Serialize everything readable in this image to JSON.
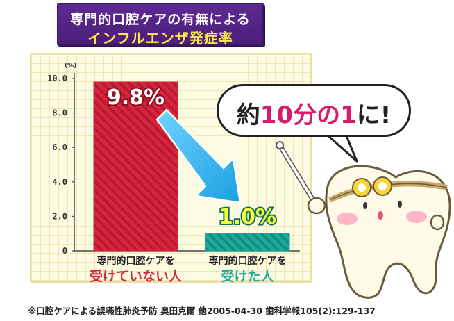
{
  "header": {
    "title_line1": "専門的口腔ケアの有無による",
    "title_line2": "インフルエンザ発症率"
  },
  "chart_data": {
    "type": "bar",
    "unit": "(%)",
    "categories": [
      {
        "line1": "専門的口腔ケアを",
        "line2": "受けていない人"
      },
      {
        "line1": "専門的口腔ケアを",
        "line2": "受けた人"
      }
    ],
    "values": [
      9.8,
      1.0
    ],
    "value_labels": [
      "9.8%",
      "1.0%"
    ],
    "ylim": [
      0,
      10
    ],
    "yticks": [
      "0",
      "2.0",
      "4.0",
      "6.0",
      "8.0",
      "10.0"
    ],
    "bar_colors": [
      "#d7253e",
      "#1aa99a"
    ],
    "label_colors": [
      "#d7253e",
      "#1aa99a"
    ],
    "arrow_color": "#33b6ee",
    "grid": true
  },
  "callout": {
    "prefix": "約",
    "highlight": "10分の1",
    "suffix": "に!"
  },
  "footnote": "※口腔ケアによる誤嚥性肺炎予防 奥田克爾 他2005-04-30 歯科学報105(2):129-137"
}
